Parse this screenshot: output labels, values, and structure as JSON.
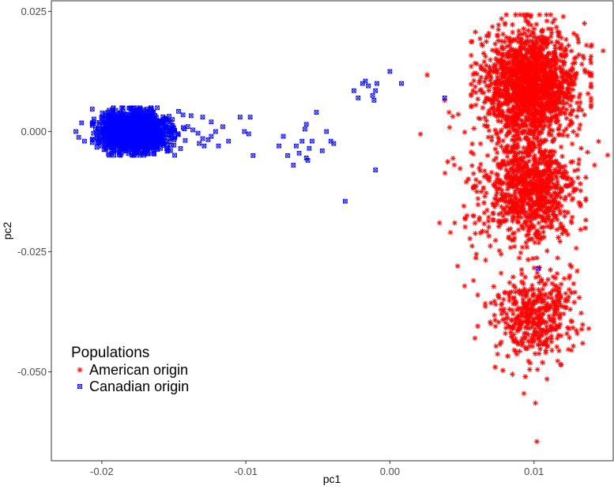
{
  "chart_data": {
    "type": "scatter",
    "title": "",
    "xlabel": "pc1",
    "ylabel": "pc2",
    "xlim": [
      -0.0235,
      0.0155
    ],
    "ylim": [
      -0.0685,
      0.0272
    ],
    "x_ticks": [
      -0.02,
      -0.01,
      0.0,
      0.01
    ],
    "x_tick_labels": [
      "-0.02",
      "-0.01",
      "0.00",
      "0.01"
    ],
    "y_ticks": [
      0.025,
      0.0,
      -0.025,
      -0.05
    ],
    "y_tick_labels": [
      "0.025",
      "0.000",
      "-0.025",
      "-0.050"
    ],
    "grid": false,
    "legend": {
      "title": "Populations",
      "placement": "bottom-left inside plot"
    },
    "series": [
      {
        "name": "American origin",
        "color": "#ff0000",
        "marker": "asterisk",
        "clusters": [
          {
            "n": 1700,
            "x_mean": 0.0098,
            "x_sd": 0.0016,
            "y_mean": 0.01,
            "y_sd": 0.0055
          },
          {
            "n": 900,
            "x_mean": 0.0097,
            "x_sd": 0.0015,
            "y_mean": -0.012,
            "y_sd": 0.0055
          },
          {
            "n": 450,
            "x_mean": 0.01,
            "x_sd": 0.0013,
            "y_mean": -0.038,
            "y_sd": 0.0045
          },
          {
            "n": 120,
            "x_mean": 0.0085,
            "x_sd": 0.003,
            "y_mean": -0.005,
            "y_sd": 0.012
          }
        ],
        "points": [
          [
            0.0102,
            -0.0645
          ],
          [
            0.0101,
            -0.0565
          ],
          [
            0.0093,
            -0.0545
          ],
          [
            0.0094,
            -0.051
          ],
          [
            0.0126,
            -0.0455
          ],
          [
            0.0138,
            -0.041
          ],
          [
            0.0148,
            0.0168
          ],
          [
            0.0142,
            -0.007
          ],
          [
            0.0135,
            0.0225
          ],
          [
            0.014,
            0.018
          ],
          [
            0.0041,
            0.004
          ],
          [
            0.0038,
            0.0065
          ],
          [
            0.0053,
            -0.0105
          ],
          [
            0.0045,
            -0.019
          ],
          [
            0.0042,
            -0.021
          ],
          [
            0.0047,
            -0.028
          ],
          [
            0.0058,
            -0.031
          ],
          [
            0.0061,
            -0.034
          ],
          [
            0.006,
            -0.0255
          ],
          [
            0.0059,
            -0.043
          ],
          [
            0.0061,
            -0.0405
          ],
          [
            0.007,
            -0.04
          ],
          [
            0.0073,
            -0.049
          ],
          [
            0.0085,
            -0.0505
          ],
          [
            0.0109,
            -0.0515
          ],
          [
            0.0097,
            -0.0495
          ],
          [
            0.0119,
            -0.0485
          ],
          [
            0.013,
            -0.042
          ]
        ]
      },
      {
        "name": "Canadian origin",
        "color": "#0000ff",
        "marker": "boxed-x",
        "clusters": [
          {
            "n": 1600,
            "x_mean": -0.0178,
            "x_sd": 0.0011,
            "y_mean": 0.0,
            "y_sd": 0.0019
          },
          {
            "n": 40,
            "x_mean": -0.0148,
            "x_sd": 0.0012,
            "y_mean": 0.0,
            "y_sd": 0.0025
          }
        ],
        "points": [
          [
            -0.0218,
            0.0
          ],
          [
            -0.0216,
            -0.0012
          ],
          [
            -0.0214,
            0.0018
          ],
          [
            -0.0212,
            -0.002
          ],
          [
            -0.013,
            0.003
          ],
          [
            -0.0124,
            0.002
          ],
          [
            -0.0124,
            -0.001
          ],
          [
            -0.0121,
            0.0
          ],
          [
            -0.0119,
            -0.003
          ],
          [
            -0.0116,
            0.001
          ],
          [
            -0.0112,
            -0.002
          ],
          [
            -0.0104,
            0.003
          ],
          [
            -0.0101,
            0.0
          ],
          [
            -0.0098,
            -0.0005
          ],
          [
            -0.0097,
            0.003
          ],
          [
            -0.0095,
            -0.005
          ],
          [
            -0.0077,
            -0.003
          ],
          [
            -0.0074,
            -0.001
          ],
          [
            -0.0071,
            -0.005
          ],
          [
            -0.0067,
            -0.007
          ],
          [
            -0.0065,
            -0.003
          ],
          [
            -0.0063,
            -0.0045
          ],
          [
            -0.0061,
            -0.002
          ],
          [
            -0.0059,
            0.0005
          ],
          [
            -0.0058,
            0.0015
          ],
          [
            -0.0058,
            -0.0055
          ],
          [
            -0.0057,
            -0.006
          ],
          [
            -0.0056,
            -0.0035
          ],
          [
            -0.0054,
            -0.002
          ],
          [
            -0.0051,
            0.004
          ],
          [
            -0.0047,
            -0.004
          ],
          [
            -0.0044,
            0.0
          ],
          [
            -0.0041,
            -0.002
          ],
          [
            -0.0039,
            -0.0025
          ],
          [
            -0.0031,
            -0.0145
          ],
          [
            -0.0025,
            0.0085
          ],
          [
            -0.0022,
            0.007
          ],
          [
            -0.0019,
            0.01
          ],
          [
            -0.0017,
            0.0105
          ],
          [
            -0.0015,
            0.0095
          ],
          [
            -0.0012,
            0.0075
          ],
          [
            -0.0011,
            0.0065
          ],
          [
            -0.001,
            0.0085
          ],
          [
            -0.0009,
            0.01
          ],
          [
            -0.001,
            -0.008
          ],
          [
            0.0,
            0.0125
          ],
          [
            0.0008,
            0.01
          ],
          [
            0.0038,
            0.007
          ],
          [
            0.0103,
            -0.0285
          ]
        ]
      }
    ]
  }
}
